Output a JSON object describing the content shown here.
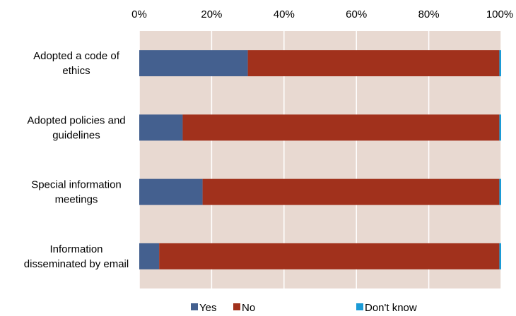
{
  "chart_data": {
    "type": "bar",
    "orientation": "horizontal",
    "stacked": true,
    "percent_stacked": true,
    "categories": [
      "Adopted a code of ethics",
      "Adopted policies and guidelines",
      "Special information meetings",
      "Information disseminated by email"
    ],
    "category_lines": [
      [
        "Adopted a code of",
        "ethics"
      ],
      [
        "Adopted policies and",
        "guidelines"
      ],
      [
        "Special information",
        "meetings"
      ],
      [
        "Information",
        "disseminated by email"
      ]
    ],
    "series": [
      {
        "name": "Yes",
        "color": "#44608f",
        "values": [
          30,
          12,
          17.5,
          5.5
        ]
      },
      {
        "name": "No",
        "color": "#a1311c",
        "values": [
          69.5,
          87.5,
          82,
          94
        ]
      },
      {
        "name": "Don't know",
        "color": "#1b9bd6",
        "values": [
          0.5,
          0.5,
          0.5,
          0.5
        ]
      }
    ],
    "x_ticks": [
      "0%",
      "20%",
      "40%",
      "60%",
      "80%",
      "100%"
    ],
    "xlim": [
      0,
      100
    ],
    "x_axis_position": "top",
    "plot_background": "#e8d9d1",
    "grid": true,
    "legend_position": "bottom"
  }
}
